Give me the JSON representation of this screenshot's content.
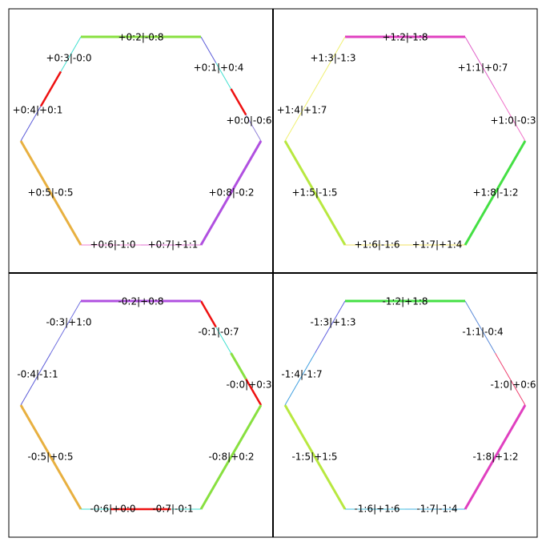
{
  "panels": [
    {
      "edges": [
        {
          "label": "+0:0|-0:6",
          "segments": [
            {
              "color": "#9080d8",
              "width": 1
            },
            {
              "color": "#ee1111",
              "width": 2.5
            },
            {
              "color": "#40e0d0",
              "width": 1
            }
          ]
        },
        {
          "label": "+0:1|+0:4",
          "segments": [
            {
              "color": "#5a5ad8",
              "width": 1
            }
          ]
        },
        {
          "label": "+0:2|-0:8",
          "segments": [
            {
              "color": "#88e040",
              "width": 3
            }
          ]
        },
        {
          "label": "+0:3|-0:0",
          "segments": [
            {
              "color": "#40e0d0",
              "width": 1
            }
          ]
        },
        {
          "label": "+0:4|+0:1",
          "segments": [
            {
              "color": "#ee1111",
              "width": 2.5
            },
            {
              "color": "#5a5ad8",
              "width": 1
            }
          ]
        },
        {
          "label": "+0:5|-0:5",
          "segments": [
            {
              "color": "#e8b040",
              "width": 3
            }
          ]
        },
        {
          "label": "+0:6|-1:0",
          "segments": [
            {
              "color": "#f080d0",
              "width": 1
            }
          ]
        },
        {
          "label": "+0:7|+1:1",
          "segments": [
            {
              "color": "#e070d0",
              "width": 1
            }
          ]
        },
        {
          "label": "+0:8|-0:2",
          "segments": [
            {
              "color": "#b050e0",
              "width": 3
            }
          ]
        }
      ]
    },
    {
      "edges": [
        {
          "label": "+1:0|-0:3",
          "segments": [
            {
              "color": "#f070c8",
              "width": 1
            }
          ]
        },
        {
          "label": "+1:1|+0:7",
          "segments": [
            {
              "color": "#e060c8",
              "width": 1
            }
          ]
        },
        {
          "label": "+1:2|-1:8",
          "segments": [
            {
              "color": "#e040c0",
              "width": 3
            }
          ]
        },
        {
          "label": "+1:3|-1:3",
          "segments": [
            {
              "color": "#f0f070",
              "width": 1
            }
          ]
        },
        {
          "label": "+1:4|+1:7",
          "segments": [
            {
              "color": "#f0f070",
              "width": 1
            }
          ]
        },
        {
          "label": "+1:5|-1:5",
          "segments": [
            {
              "color": "#b8e840",
              "width": 3
            }
          ]
        },
        {
          "label": "+1:6|-1:6",
          "segments": [
            {
              "color": "#f0e060",
              "width": 1
            }
          ]
        },
        {
          "label": "+1:7|+1:4",
          "segments": [
            {
              "color": "#f0e060",
              "width": 1
            }
          ]
        },
        {
          "label": "+1:8|-1:2",
          "segments": [
            {
              "color": "#44e044",
              "width": 3
            }
          ]
        }
      ]
    },
    {
      "edges": [
        {
          "label": "-0:0|+0:3",
          "segments": [
            {
              "color": "#ee1111",
              "width": 2.5
            },
            {
              "color": "#88e040",
              "width": 3
            }
          ]
        },
        {
          "label": "-0:1|-0:7",
          "segments": [
            {
              "color": "#40e0d0",
              "width": 1
            },
            {
              "color": "#ee1111",
              "width": 2.5
            }
          ]
        },
        {
          "label": "-0:2|+0:8",
          "segments": [
            {
              "color": "#b050e0",
              "width": 3
            }
          ]
        },
        {
          "label": "-0:3|+1:0",
          "segments": [
            {
              "color": "#7070e0",
              "width": 1
            }
          ]
        },
        {
          "label": "-0:4|-1:1",
          "segments": [
            {
              "color": "#5a5ad8",
              "width": 1
            }
          ]
        },
        {
          "label": "-0:5|+0:5",
          "segments": [
            {
              "color": "#e8b040",
              "width": 3
            }
          ]
        },
        {
          "label": "-0:6|+0:0",
          "segments": [
            {
              "color": "#40e0d0",
              "width": 1
            },
            {
              "color": "#ee1111",
              "width": 2.5
            }
          ]
        },
        {
          "label": "-0:7|-0:1",
          "segments": [
            {
              "color": "#ee1111",
              "width": 2.5
            },
            {
              "color": "#40e0d0",
              "width": 1
            }
          ]
        },
        {
          "label": "-0:8|+0:2",
          "segments": [
            {
              "color": "#88e040",
              "width": 3
            }
          ]
        }
      ]
    },
    {
      "edges": [
        {
          "label": "-1:0|+0:6",
          "segments": [
            {
              "color": "#ee4070",
              "width": 1
            }
          ]
        },
        {
          "label": "-1:1|-0:4",
          "segments": [
            {
              "color": "#5a8ad8",
              "width": 1
            }
          ]
        },
        {
          "label": "-1:2|+1:8",
          "segments": [
            {
              "color": "#44e044",
              "width": 3
            }
          ]
        },
        {
          "label": "-1:3|+1:3",
          "segments": [
            {
              "color": "#6060e0",
              "width": 1
            }
          ]
        },
        {
          "label": "-1:4|-1:7",
          "segments": [
            {
              "color": "#40a0e0",
              "width": 1
            }
          ]
        },
        {
          "label": "-1:5|+1:5",
          "segments": [
            {
              "color": "#b8e840",
              "width": 3
            }
          ]
        },
        {
          "label": "-1:6|+1:6",
          "segments": [
            {
              "color": "#40c0e0",
              "width": 1
            }
          ]
        },
        {
          "label": "-1:7|-1:4",
          "segments": [
            {
              "color": "#40b0e0",
              "width": 1
            }
          ]
        },
        {
          "label": "-1:8|+1:2",
          "segments": [
            {
              "color": "#e040c0",
              "width": 3
            }
          ]
        }
      ]
    }
  ]
}
